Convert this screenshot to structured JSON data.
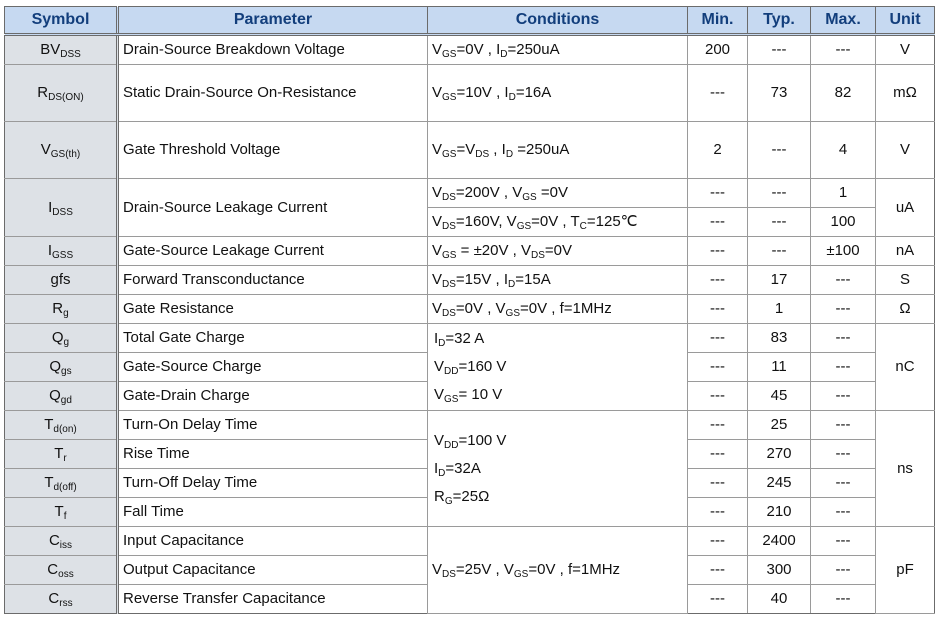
{
  "headers": {
    "symbol": "Symbol",
    "parameter": "Parameter",
    "conditions": "Conditions",
    "min": "Min.",
    "typ": "Typ.",
    "max": "Max.",
    "unit": "Unit"
  },
  "rows": [
    {
      "sym": "BV",
      "sub": "DSS",
      "param": "Drain-Source Breakdown Voltage",
      "min": "200",
      "typ": "---",
      "max": "---",
      "unit": "V"
    },
    {
      "sym": "R",
      "sub": "DS(ON)",
      "param": "Static Drain-Source On-Resistance",
      "min": "---",
      "typ": "73",
      "max": "82",
      "unit": "mΩ"
    },
    {
      "sym": "V",
      "sub": "GS(th)",
      "param": "Gate Threshold Voltage",
      "min": "2",
      "typ": "---",
      "max": "4",
      "unit": "V"
    },
    {
      "sym": "I",
      "sub": "DSS",
      "param": "Drain-Source Leakage Current",
      "min": "---",
      "typ": "---",
      "max": "1",
      "min2": "---",
      "typ2": "---",
      "max2": "100",
      "unit": "uA"
    },
    {
      "sym": "I",
      "sub": "GSS",
      "param": "Gate-Source Leakage Current",
      "min": "---",
      "typ": "---",
      "max": "±100",
      "unit": "nA"
    },
    {
      "sym": "gfs",
      "sub": "",
      "param": "Forward Transconductance",
      "min": "---",
      "typ": "17",
      "max": "---",
      "unit": "S"
    },
    {
      "sym": "R",
      "sub": "g",
      "param": "Gate Resistance",
      "min": "---",
      "typ": "1",
      "max": "---",
      "unit": "Ω"
    },
    {
      "sym": "Q",
      "sub": "g",
      "param": "Total Gate Charge",
      "min": "---",
      "typ": "83",
      "max": "---",
      "unit": "nC"
    },
    {
      "sym": "Q",
      "sub": "gs",
      "param": "Gate-Source Charge",
      "min": "---",
      "typ": "11",
      "max": "---"
    },
    {
      "sym": "Q",
      "sub": "gd",
      "param": "Gate-Drain Charge",
      "min": "---",
      "typ": "45",
      "max": "---"
    },
    {
      "sym": "T",
      "sub": "d(on)",
      "param": "Turn-On Delay Time",
      "min": "---",
      "typ": "25",
      "max": "---",
      "unit": "ns"
    },
    {
      "sym": "T",
      "sub": "r",
      "param": "Rise Time",
      "min": "---",
      "typ": "270",
      "max": "---"
    },
    {
      "sym": "T",
      "sub": "d(off)",
      "param": "Turn-Off Delay Time",
      "min": "---",
      "typ": "245",
      "max": "---"
    },
    {
      "sym": "T",
      "sub": "f",
      "param": "Fall Time",
      "min": "---",
      "typ": "210",
      "max": "---"
    },
    {
      "sym": "C",
      "sub": "iss",
      "param": "Input Capacitance",
      "min": "---",
      "typ": "2400",
      "max": "---",
      "unit": "pF"
    },
    {
      "sym": "C",
      "sub": "oss",
      "param": "Output Capacitance",
      "min": "---",
      "typ": "300",
      "max": "---"
    },
    {
      "sym": "C",
      "sub": "rss",
      "param": "Reverse Transfer Capacitance",
      "min": "---",
      "typ": "40",
      "max": "---"
    }
  ],
  "conditions": {
    "bvdss": {
      "v": "V",
      "vs": "GS",
      "a": "=0V , I",
      "as": "D",
      "b": "=250uA"
    },
    "rdson": {
      "v": "V",
      "vs": "GS",
      "a": "=10V , I",
      "as": "D",
      "b": "=16A"
    },
    "vgsth": {
      "v": "V",
      "vs": "GS",
      "a": "=V",
      "as": "DS",
      "b": " , I",
      "bs": "D",
      "c": " =250uA"
    },
    "idss1": {
      "v": "V",
      "vs": "DS",
      "a": "=200V , V",
      "as": "GS",
      "b": " =0V"
    },
    "idss2": {
      "v": "V",
      "vs": "DS",
      "a": "=160V, V",
      "as": "GS",
      "b": "=0V ,   T",
      "bs": "C",
      "c": "=125℃"
    },
    "igss": {
      "v": "V",
      "vs": "GS",
      "a": " = ±20V , V",
      "as": "DS",
      "b": "=0V"
    },
    "gfs": {
      "v": "V",
      "vs": "DS",
      "a": "=15V , I",
      "as": "D",
      "b": "=15A"
    },
    "rg": {
      "v": "V",
      "vs": "DS",
      "a": "=0V , V",
      "as": "GS",
      "b": "=0V , f=1MHz"
    },
    "charge": [
      {
        "v": "I",
        "vs": "D",
        "a": "=32 A"
      },
      {
        "v": "V",
        "vs": "DD",
        "a": "=160 V"
      },
      {
        "v": "V",
        "vs": "GS",
        "a": "= 10 V"
      }
    ],
    "switch": [
      {
        "v": "V",
        "vs": "DD",
        "a": "=100 V"
      },
      {
        "v": "I",
        "vs": "D",
        "a": "=32A"
      },
      {
        "v": "R",
        "vs": "G",
        "a": "=25Ω"
      }
    ],
    "cap": {
      "v": "V",
      "vs": "DS",
      "a": "=25V , V",
      "as": "GS",
      "b": "=0V , f=1MHz"
    }
  }
}
